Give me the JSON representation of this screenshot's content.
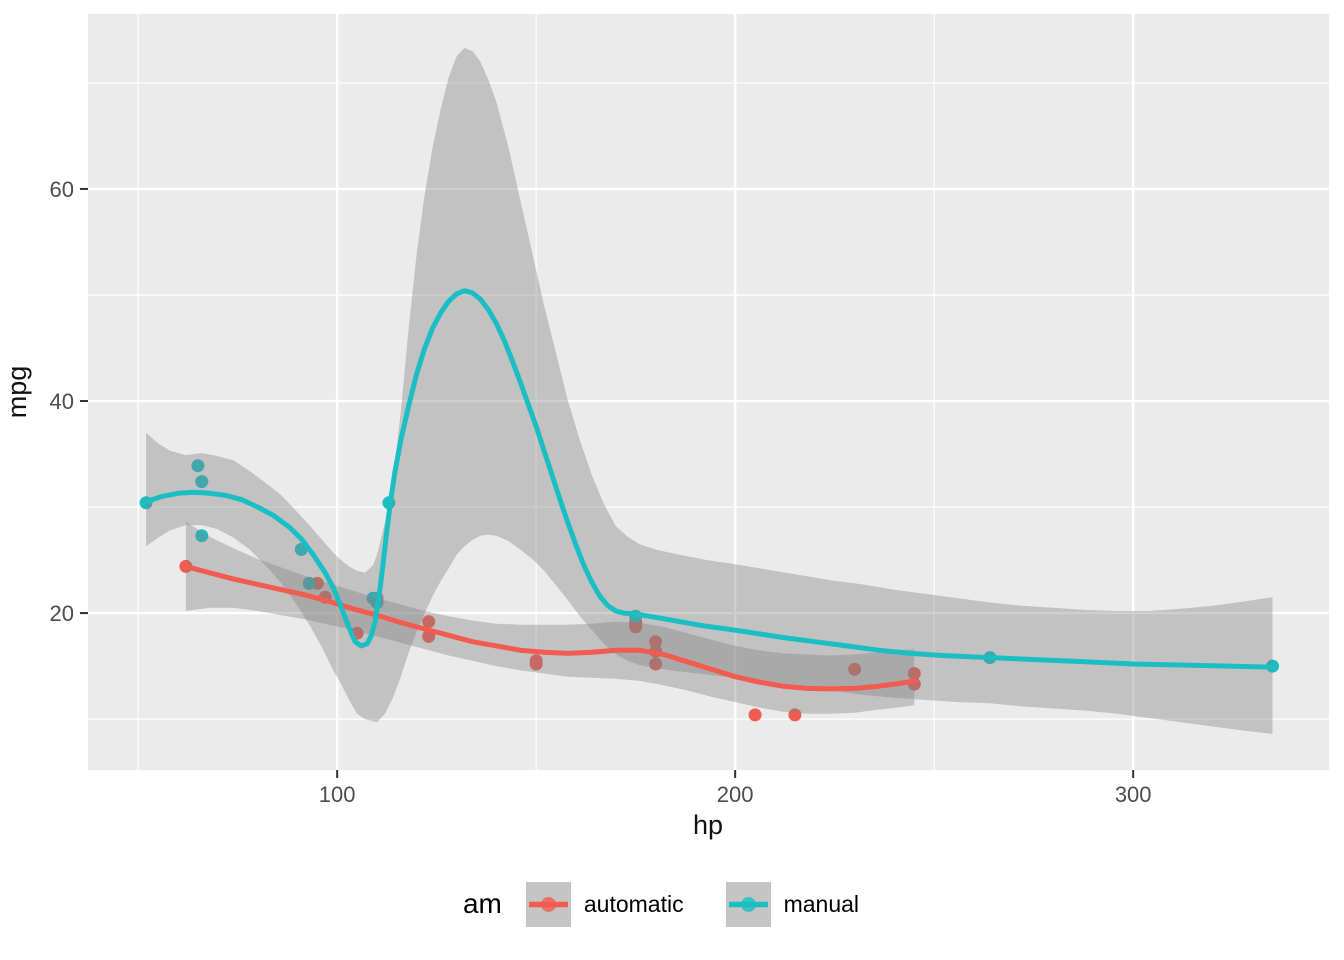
{
  "figure": {
    "legend_title": "am"
  },
  "chart_data": {
    "type": "scatter",
    "title": "",
    "xlabel": "hp",
    "ylabel": "mpg",
    "legend_title": "am",
    "legend_position": "bottom",
    "grid": true,
    "x_range": [
      37.4,
      349.2
    ],
    "y_range": [
      5.2,
      76.5
    ],
    "x_ticks": [
      100,
      200,
      300
    ],
    "x_minor_ticks": [
      50,
      150,
      250,
      350
    ],
    "y_ticks": [
      20,
      40,
      60
    ],
    "y_minor_ticks": [
      10,
      30,
      50,
      70
    ],
    "panel_bg": "#EBEBEB",
    "grid_color": "#FFFFFF",
    "ribbon_fill": "rgba(128,128,128,0.38)",
    "tick_label_color": "#4D4D4D",
    "tick_mark_color": "#333333",
    "legend_key_fill": "#C5C5C5",
    "series": [
      {
        "name": "automatic",
        "color": "#F25B50",
        "points": [
          [
            110,
            21.4
          ],
          [
            175,
            18.7
          ],
          [
            105,
            18.1
          ],
          [
            245,
            14.3
          ],
          [
            62,
            24.4
          ],
          [
            95,
            22.8
          ],
          [
            123,
            19.2
          ],
          [
            123,
            17.8
          ],
          [
            180,
            16.4
          ],
          [
            180,
            17.3
          ],
          [
            180,
            15.2
          ],
          [
            205,
            10.4
          ],
          [
            215,
            10.4
          ],
          [
            230,
            14.7
          ],
          [
            97,
            21.5
          ],
          [
            150,
            15.5
          ],
          [
            150,
            15.2
          ],
          [
            245,
            13.3
          ],
          [
            175,
            19.2
          ]
        ],
        "line": [
          [
            62,
            24.4
          ],
          [
            68,
            23.8
          ],
          [
            74,
            23.2
          ],
          [
            80,
            22.7
          ],
          [
            86,
            22.2
          ],
          [
            92,
            21.7
          ],
          [
            98,
            21.1
          ],
          [
            104,
            20.4
          ],
          [
            110,
            19.8
          ],
          [
            116,
            19.1
          ],
          [
            122,
            18.5
          ],
          [
            128,
            17.9
          ],
          [
            134,
            17.3
          ],
          [
            140,
            16.9
          ],
          [
            146,
            16.5
          ],
          [
            152,
            16.3
          ],
          [
            158,
            16.2
          ],
          [
            164,
            16.3
          ],
          [
            170,
            16.5
          ],
          [
            176,
            16.5
          ],
          [
            182,
            16.1
          ],
          [
            188,
            15.4
          ],
          [
            194,
            14.7
          ],
          [
            200,
            14.0
          ],
          [
            206,
            13.5
          ],
          [
            212,
            13.1
          ],
          [
            218,
            12.9
          ],
          [
            224,
            12.85
          ],
          [
            230,
            12.9
          ],
          [
            236,
            13.1
          ],
          [
            241,
            13.35
          ],
          [
            245,
            13.6
          ]
        ],
        "ribbon": [
          [
            62,
            20.2,
            28.6
          ],
          [
            68,
            20.5,
            27.2
          ],
          [
            74,
            20.5,
            26.1
          ],
          [
            80,
            20.2,
            25.1
          ],
          [
            86,
            19.8,
            24.3
          ],
          [
            92,
            19.4,
            23.5
          ],
          [
            98,
            18.9,
            22.8
          ],
          [
            104,
            18.4,
            22.1
          ],
          [
            110,
            17.8,
            21.4
          ],
          [
            116,
            17.2,
            20.8
          ],
          [
            122,
            16.6,
            20.2
          ],
          [
            128,
            16.0,
            19.7
          ],
          [
            134,
            15.5,
            19.3
          ],
          [
            140,
            15.0,
            19.0
          ],
          [
            146,
            14.6,
            18.9
          ],
          [
            152,
            14.3,
            18.9
          ],
          [
            158,
            14.0,
            18.9
          ],
          [
            164,
            13.9,
            19.0
          ],
          [
            170,
            13.8,
            19.2
          ],
          [
            176,
            13.6,
            19.1
          ],
          [
            182,
            13.2,
            18.7
          ],
          [
            188,
            12.7,
            18.1
          ],
          [
            194,
            12.1,
            17.5
          ],
          [
            200,
            11.6,
            16.9
          ],
          [
            206,
            11.1,
            16.5
          ],
          [
            212,
            10.7,
            16.2
          ],
          [
            218,
            10.5,
            16.1
          ],
          [
            224,
            10.5,
            16.0
          ],
          [
            230,
            10.6,
            16.1
          ],
          [
            236,
            10.9,
            16.3
          ],
          [
            241,
            11.1,
            16.5
          ],
          [
            245,
            11.3,
            16.6
          ]
        ]
      },
      {
        "name": "manual",
        "color": "#1BBEC3",
        "points": [
          [
            110,
            21.0
          ],
          [
            110,
            21.0
          ],
          [
            93,
            22.8
          ],
          [
            66,
            32.4
          ],
          [
            52,
            30.4
          ],
          [
            65,
            33.9
          ],
          [
            66,
            27.3
          ],
          [
            91,
            26.0
          ],
          [
            113,
            30.4
          ],
          [
            264,
            15.8
          ],
          [
            175,
            19.7
          ],
          [
            335,
            15.0
          ],
          [
            109,
            21.4
          ]
        ],
        "line": [
          [
            52,
            30.5
          ],
          [
            56,
            31.0
          ],
          [
            60,
            31.3
          ],
          [
            64,
            31.4
          ],
          [
            68,
            31.3
          ],
          [
            72,
            31.1
          ],
          [
            76,
            30.7
          ],
          [
            80,
            30.0
          ],
          [
            84,
            29.2
          ],
          [
            88,
            28.1
          ],
          [
            91,
            27.0
          ],
          [
            94,
            25.5
          ],
          [
            97,
            23.8
          ],
          [
            99,
            22.4
          ],
          [
            101,
            20.6
          ],
          [
            103,
            18.6
          ],
          [
            104.5,
            17.3
          ],
          [
            106,
            16.9
          ],
          [
            107.5,
            17.1
          ],
          [
            108.5,
            17.8
          ],
          [
            109.5,
            19.2
          ],
          [
            110.5,
            21.5
          ],
          [
            111.5,
            24.5
          ],
          [
            112.5,
            27.8
          ],
          [
            113.5,
            30.8
          ],
          [
            114.5,
            33.3
          ],
          [
            116,
            36.3
          ],
          [
            118,
            39.6
          ],
          [
            120,
            42.6
          ],
          [
            122,
            45.0
          ],
          [
            124,
            46.9
          ],
          [
            126,
            48.3
          ],
          [
            128,
            49.4
          ],
          [
            130,
            50.1
          ],
          [
            132,
            50.4
          ],
          [
            134,
            50.2
          ],
          [
            136,
            49.6
          ],
          [
            138,
            48.6
          ],
          [
            140,
            47.3
          ],
          [
            142,
            45.7
          ],
          [
            144,
            43.8
          ],
          [
            146,
            41.8
          ],
          [
            148,
            39.7
          ],
          [
            150,
            37.6
          ],
          [
            152,
            35.3
          ],
          [
            154,
            33.0
          ],
          [
            156,
            30.7
          ],
          [
            158,
            28.5
          ],
          [
            160,
            26.4
          ],
          [
            162,
            24.5
          ],
          [
            164,
            22.9
          ],
          [
            166,
            21.6
          ],
          [
            168,
            20.7
          ],
          [
            170,
            20.2
          ],
          [
            172,
            20.0
          ],
          [
            175,
            19.9
          ],
          [
            180,
            19.6
          ],
          [
            186,
            19.2
          ],
          [
            192,
            18.8
          ],
          [
            198,
            18.5
          ],
          [
            205,
            18.1
          ],
          [
            212,
            17.7
          ],
          [
            220,
            17.3
          ],
          [
            228,
            16.9
          ],
          [
            236,
            16.5
          ],
          [
            244,
            16.2
          ],
          [
            252,
            16.0
          ],
          [
            264,
            15.8
          ],
          [
            276,
            15.6
          ],
          [
            288,
            15.4
          ],
          [
            300,
            15.2
          ],
          [
            312,
            15.1
          ],
          [
            324,
            15.0
          ],
          [
            335,
            14.9
          ]
        ],
        "ribbon": [
          [
            52,
            26.3,
            37.0
          ],
          [
            55,
            27.1,
            36.0
          ],
          [
            58,
            27.8,
            35.3
          ],
          [
            62,
            28.3,
            34.9
          ],
          [
            66,
            28.3,
            35.1
          ],
          [
            70,
            27.9,
            34.8
          ],
          [
            74,
            27.1,
            34.4
          ],
          [
            78,
            26.0,
            33.4
          ],
          [
            82,
            24.5,
            32.3
          ],
          [
            86,
            22.8,
            31.1
          ],
          [
            90,
            20.7,
            29.5
          ],
          [
            93,
            18.9,
            28.3
          ],
          [
            96,
            16.9,
            27.0
          ],
          [
            99,
            14.6,
            25.7
          ],
          [
            101,
            13.3,
            25.0
          ],
          [
            103,
            11.8,
            24.4
          ],
          [
            105,
            10.5,
            24.0
          ],
          [
            107,
            10.0,
            23.8
          ],
          [
            109,
            9.8,
            24.5
          ],
          [
            110,
            9.7,
            25.5
          ],
          [
            112,
            10.5,
            28.5
          ],
          [
            114,
            12.0,
            32.5
          ],
          [
            116,
            14.0,
            39.0
          ],
          [
            118,
            16.3,
            47.0
          ],
          [
            120,
            18.3,
            54.0
          ],
          [
            122,
            20.0,
            59.5
          ],
          [
            124,
            21.6,
            64.0
          ],
          [
            126,
            23.0,
            67.5
          ],
          [
            128,
            24.2,
            70.5
          ],
          [
            130,
            25.5,
            72.5
          ],
          [
            132,
            26.3,
            73.3
          ],
          [
            134,
            26.9,
            73.0
          ],
          [
            136,
            27.3,
            72.0
          ],
          [
            138,
            27.4,
            70.3
          ],
          [
            140,
            27.3,
            68.2
          ],
          [
            143,
            26.8,
            64.0
          ],
          [
            146,
            26.0,
            59.0
          ],
          [
            149,
            25.1,
            54.0
          ],
          [
            152,
            24.0,
            49.0
          ],
          [
            155,
            22.6,
            44.5
          ],
          [
            158,
            21.2,
            40.0
          ],
          [
            161,
            19.7,
            36.3
          ],
          [
            164,
            18.4,
            33.0
          ],
          [
            167,
            17.1,
            30.3
          ],
          [
            170,
            16.1,
            28.2
          ],
          [
            173,
            15.5,
            27.2
          ],
          [
            176,
            15.1,
            26.5
          ],
          [
            180,
            14.8,
            26.0
          ],
          [
            186,
            14.5,
            25.5
          ],
          [
            193,
            14.2,
            25.0
          ],
          [
            200,
            13.9,
            24.6
          ],
          [
            208,
            13.5,
            24.1
          ],
          [
            216,
            13.1,
            23.6
          ],
          [
            224,
            12.7,
            23.1
          ],
          [
            232,
            12.3,
            22.7
          ],
          [
            240,
            12.0,
            22.2
          ],
          [
            248,
            11.8,
            21.8
          ],
          [
            256,
            11.6,
            21.4
          ],
          [
            264,
            11.5,
            21.0
          ],
          [
            272,
            11.2,
            20.7
          ],
          [
            280,
            11.0,
            20.5
          ],
          [
            288,
            10.8,
            20.3
          ],
          [
            296,
            10.5,
            20.2
          ],
          [
            304,
            10.1,
            20.2
          ],
          [
            312,
            9.7,
            20.4
          ],
          [
            320,
            9.3,
            20.7
          ],
          [
            328,
            8.9,
            21.1
          ],
          [
            335,
            8.6,
            21.5
          ]
        ]
      }
    ]
  }
}
